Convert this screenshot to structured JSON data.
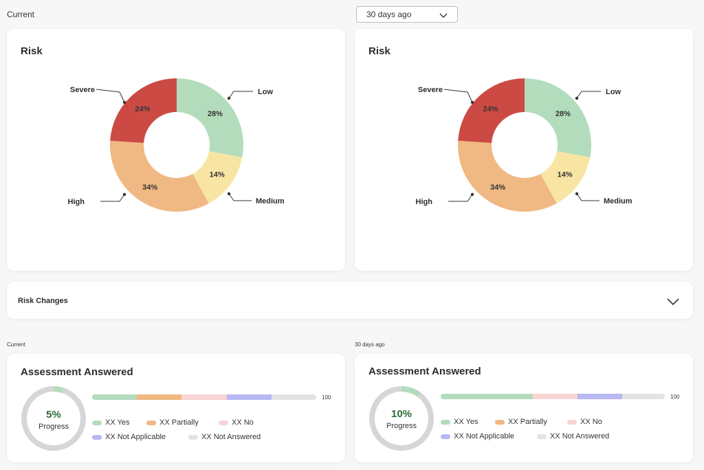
{
  "header": {
    "current_label": "Current",
    "period_select": {
      "selected": "30 days ago"
    }
  },
  "colors": {
    "low": "#b3dcbc",
    "medium": "#f9e5a3",
    "high": "#f0b883",
    "severe": "#cb4b44",
    "yes": "#b3dcbc",
    "partially": "#f0b883",
    "no": "#f9d4d4",
    "not_applicable": "#b8b8f3",
    "not_answered": "#e3e3e3",
    "progress_text": "#2e6b32"
  },
  "risk_cards": [
    {
      "title": "Risk",
      "chart_data": {
        "type": "pie",
        "categories": [
          "Low",
          "Medium",
          "High",
          "Severe"
        ],
        "values": [
          28,
          14,
          34,
          24
        ],
        "data_labels": [
          "28%",
          "14%",
          "34%",
          "24%"
        ]
      }
    },
    {
      "title": "Risk",
      "chart_data": {
        "type": "pie",
        "categories": [
          "Low",
          "Medium",
          "High",
          "Severe"
        ],
        "values": [
          28,
          14,
          34,
          24
        ],
        "data_labels": [
          "28%",
          "14%",
          "34%",
          "24%"
        ]
      }
    }
  ],
  "risk_changes": {
    "label": "Risk Changes"
  },
  "assessments": [
    {
      "period_label": "Current",
      "title": "Assessment Answered",
      "progress": {
        "value": "5%",
        "label": "Progress",
        "fraction": 0.05
      },
      "bar": {
        "max_label": "100",
        "segments": [
          20,
          20,
          20,
          20
        ]
      },
      "legend": [
        "XX Yes",
        "XX Partially",
        "XX No",
        "XX Not Applicable",
        "XX Not Answered"
      ]
    },
    {
      "period_label": "30 days ago",
      "title": "Assessment Answered",
      "progress": {
        "value": "10%",
        "label": "Progress",
        "fraction": 0.1
      },
      "bar": {
        "max_label": "100",
        "segments": [
          41,
          0,
          20,
          20
        ]
      },
      "legend": [
        "XX Yes",
        "XX Partially",
        "XX No",
        "XX Not Applicable",
        "XX Not Answered"
      ]
    }
  ]
}
